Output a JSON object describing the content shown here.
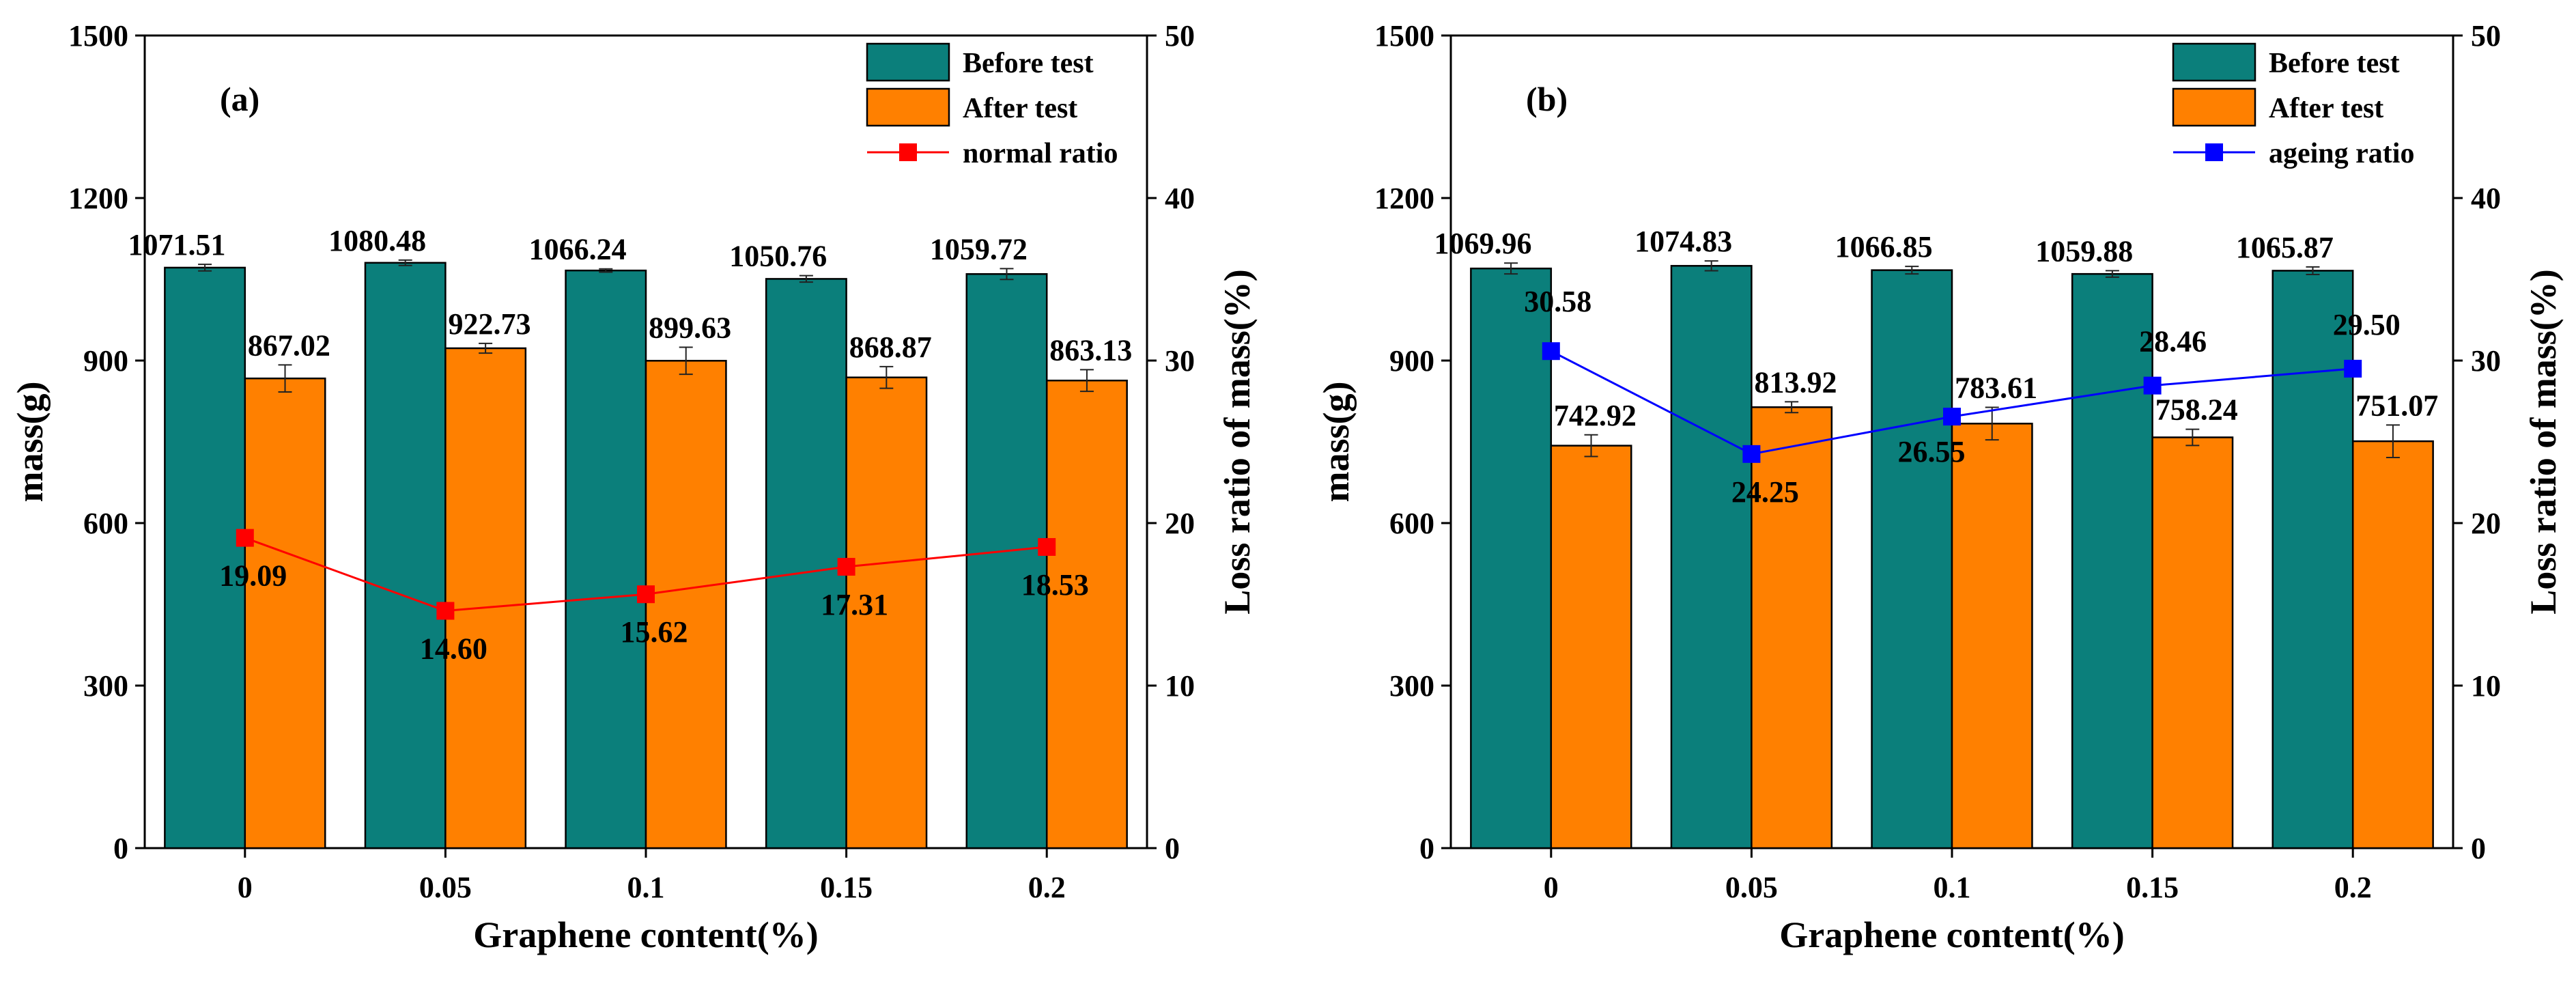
{
  "chart_data": [
    {
      "type": "bar",
      "panel_label": "(a)",
      "categories": [
        "0",
        "0.05",
        "0.1",
        "0.15",
        "0.2"
      ],
      "xlabel": "Graphene content(%)",
      "ylabel": "mass(g)",
      "y2label": "Loss ratio of mass(%)",
      "ylim": [
        0,
        1500
      ],
      "y2lim": [
        0,
        50
      ],
      "yticks": [
        "0",
        "300",
        "600",
        "900",
        "1200",
        "1500"
      ],
      "y2ticks": [
        "0",
        "10",
        "20",
        "30",
        "40",
        "50"
      ],
      "legend_position": "top-right",
      "series": [
        {
          "name": "Before test",
          "kind": "bar",
          "color": "#0b7f7b",
          "values": [
            1071.51,
            1080.48,
            1066.24,
            1050.76,
            1059.72
          ],
          "labels": [
            "1071.51",
            "1080.48",
            "1066.24",
            "1050.76",
            "1059.72"
          ],
          "errors": [
            6,
            5,
            3,
            6,
            10
          ]
        },
        {
          "name": "After   test",
          "kind": "bar",
          "color": "#ff8000",
          "values": [
            867.02,
            922.73,
            899.63,
            868.87,
            863.13
          ],
          "labels": [
            "867.02",
            "922.73",
            "899.63",
            "868.87",
            "863.13"
          ],
          "errors": [
            25,
            9,
            25,
            20,
            20
          ]
        },
        {
          "name": "normal ratio",
          "kind": "line",
          "axis": "right",
          "color": "#ff0000",
          "values": [
            19.09,
            14.6,
            15.62,
            17.31,
            18.53
          ],
          "labels": [
            "19.09",
            "14.60",
            "15.62",
            "17.31",
            "18.53"
          ]
        }
      ]
    },
    {
      "type": "bar",
      "panel_label": "(b)",
      "categories": [
        "0",
        "0.05",
        "0.1",
        "0.15",
        "0.2"
      ],
      "xlabel": "Graphene content(%)",
      "ylabel": "mass(g)",
      "y2label": "Loss ratio of mass(%)",
      "ylim": [
        0,
        1500
      ],
      "y2lim": [
        0,
        50
      ],
      "yticks": [
        "0",
        "300",
        "600",
        "900",
        "1200",
        "1500"
      ],
      "y2ticks": [
        "0",
        "10",
        "20",
        "30",
        "40",
        "50"
      ],
      "legend_position": "top-right",
      "series": [
        {
          "name": "Before test",
          "kind": "bar",
          "color": "#0b7f7b",
          "values": [
            1069.96,
            1074.83,
            1066.85,
            1059.88,
            1065.87
          ],
          "labels": [
            "1069.96",
            "1074.83",
            "1066.85",
            "1059.88",
            "1065.87"
          ],
          "errors": [
            10,
            9,
            7,
            6,
            7
          ]
        },
        {
          "name": "After    test",
          "kind": "bar",
          "color": "#ff8000",
          "values": [
            742.92,
            813.92,
            783.61,
            758.24,
            751.07
          ],
          "labels": [
            "742.92",
            "813.92",
            "783.61",
            "758.24",
            "751.07"
          ],
          "errors": [
            20,
            10,
            30,
            15,
            30
          ]
        },
        {
          "name": "ageing ratio",
          "kind": "line",
          "axis": "right",
          "color": "#0000ff",
          "values": [
            30.58,
            24.25,
            26.55,
            28.46,
            29.5
          ],
          "labels": [
            "30.58",
            "24.25",
            "26.55",
            "28.46",
            "29.50"
          ]
        }
      ]
    }
  ]
}
